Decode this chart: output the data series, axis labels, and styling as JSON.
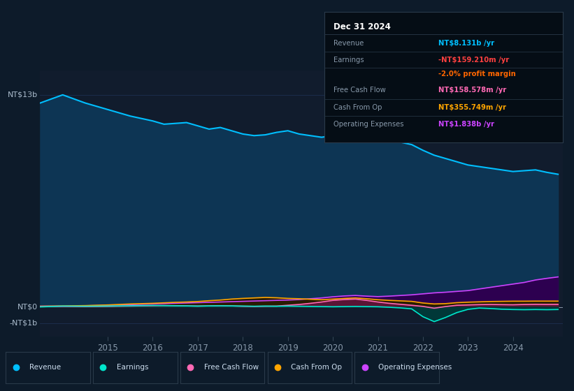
{
  "background_color": "#0d1b2a",
  "plot_bg_color": "#111c2d",
  "ylabel_top": "NT$13b",
  "ylabel_zero": "NT$0",
  "ylabel_neg": "-NT$1b",
  "ylim": [
    -1.8,
    14.5
  ],
  "xlim_start": 2013.5,
  "xlim_end": 2025.1,
  "years": [
    2013.5,
    2014.0,
    2014.5,
    2015.0,
    2015.25,
    2015.5,
    2015.75,
    2016.0,
    2016.25,
    2016.5,
    2016.75,
    2017.0,
    2017.25,
    2017.5,
    2017.75,
    2018.0,
    2018.25,
    2018.5,
    2018.75,
    2019.0,
    2019.25,
    2019.5,
    2019.75,
    2020.0,
    2020.25,
    2020.5,
    2020.75,
    2021.0,
    2021.25,
    2021.5,
    2021.75,
    2022.0,
    2022.25,
    2022.5,
    2022.75,
    2023.0,
    2023.25,
    2023.5,
    2023.75,
    2024.0,
    2024.25,
    2024.5,
    2024.75,
    2025.0
  ],
  "revenue": [
    12.5,
    13.0,
    12.5,
    12.1,
    11.9,
    11.7,
    11.55,
    11.4,
    11.2,
    11.25,
    11.3,
    11.1,
    10.9,
    11.0,
    10.8,
    10.6,
    10.5,
    10.55,
    10.7,
    10.8,
    10.6,
    10.5,
    10.4,
    10.5,
    10.65,
    10.7,
    10.55,
    10.4,
    10.25,
    10.1,
    9.95,
    9.6,
    9.3,
    9.1,
    8.9,
    8.7,
    8.6,
    8.5,
    8.4,
    8.3,
    8.35,
    8.4,
    8.25,
    8.131
  ],
  "earnings": [
    0.0,
    0.05,
    0.04,
    0.05,
    0.06,
    0.07,
    0.08,
    0.09,
    0.08,
    0.07,
    0.06,
    0.05,
    0.06,
    0.07,
    0.06,
    0.05,
    0.04,
    0.05,
    0.04,
    0.05,
    0.04,
    0.03,
    0.02,
    0.01,
    0.02,
    0.03,
    0.02,
    0.01,
    -0.02,
    -0.06,
    -0.12,
    -0.6,
    -0.9,
    -0.65,
    -0.35,
    -0.15,
    -0.07,
    -0.1,
    -0.14,
    -0.16,
    -0.17,
    -0.16,
    -0.17,
    -0.159
  ],
  "free_cash_flow": [
    0.02,
    0.03,
    0.02,
    0.03,
    0.04,
    0.05,
    0.06,
    0.07,
    0.08,
    0.07,
    0.06,
    0.05,
    0.06,
    0.07,
    0.06,
    0.04,
    0.03,
    0.04,
    0.05,
    0.1,
    0.15,
    0.22,
    0.3,
    0.4,
    0.45,
    0.48,
    0.4,
    0.3,
    0.22,
    0.16,
    0.1,
    0.03,
    -0.08,
    0.02,
    0.1,
    0.12,
    0.14,
    0.15,
    0.14,
    0.13,
    0.15,
    0.16,
    0.155,
    0.158
  ],
  "cash_from_op": [
    0.04,
    0.06,
    0.08,
    0.12,
    0.15,
    0.18,
    0.2,
    0.22,
    0.25,
    0.28,
    0.3,
    0.33,
    0.38,
    0.42,
    0.48,
    0.52,
    0.55,
    0.58,
    0.56,
    0.52,
    0.5,
    0.47,
    0.44,
    0.48,
    0.52,
    0.55,
    0.5,
    0.44,
    0.4,
    0.37,
    0.34,
    0.24,
    0.18,
    0.2,
    0.26,
    0.29,
    0.31,
    0.33,
    0.34,
    0.35,
    0.35,
    0.355,
    0.355,
    0.355
  ],
  "operating_expenses": [
    0.04,
    0.05,
    0.07,
    0.1,
    0.12,
    0.14,
    0.16,
    0.18,
    0.2,
    0.22,
    0.24,
    0.26,
    0.28,
    0.3,
    0.32,
    0.34,
    0.36,
    0.38,
    0.4,
    0.42,
    0.45,
    0.5,
    0.55,
    0.62,
    0.67,
    0.7,
    0.66,
    0.63,
    0.66,
    0.7,
    0.74,
    0.8,
    0.86,
    0.9,
    0.95,
    1.0,
    1.1,
    1.2,
    1.3,
    1.4,
    1.5,
    1.65,
    1.75,
    1.838
  ],
  "colors": {
    "revenue_line": "#00bfff",
    "revenue_fill": "#0d3554",
    "earnings_line": "#00e5cc",
    "earnings_fill": "#003838",
    "free_cash_flow_line": "#ff69b4",
    "free_cash_flow_fill": "#5a1535",
    "cash_from_op_line": "#ffa500",
    "cash_from_op_fill": "#2a1c00",
    "operating_expenses_line": "#cc44ff",
    "operating_expenses_fill": "#2d0050"
  },
  "gridline_color": "#1e3050",
  "gridline_zero_color": "#8899aa",
  "info_box": {
    "title": "Dec 31 2024",
    "title_color": "#ffffff",
    "label_color": "#8899aa",
    "divider_color": "#2a3a4a",
    "bg_color": "#050d15",
    "border_color": "#2a3a4a",
    "rows": [
      {
        "label": "Revenue",
        "value": "NT$8.131b /yr",
        "value_color": "#00bfff",
        "label_only": false
      },
      {
        "label": "Earnings",
        "value": "-NT$159.210m /yr",
        "value_color": "#ff4040",
        "label_only": false
      },
      {
        "label": "",
        "value": "-2.0% profit margin",
        "value_color": "#ff6600",
        "label_only": true
      },
      {
        "label": "Free Cash Flow",
        "value": "NT$158.578m /yr",
        "value_color": "#ff69b4",
        "label_only": false
      },
      {
        "label": "Cash From Op",
        "value": "NT$355.749m /yr",
        "value_color": "#ffa500",
        "label_only": false
      },
      {
        "label": "Operating Expenses",
        "value": "NT$1.838b /yr",
        "value_color": "#cc44ff",
        "label_only": false
      }
    ]
  },
  "legend_items": [
    {
      "label": "Revenue",
      "color": "#00bfff"
    },
    {
      "label": "Earnings",
      "color": "#00e5cc"
    },
    {
      "label": "Free Cash Flow",
      "color": "#ff69b4"
    },
    {
      "label": "Cash From Op",
      "color": "#ffa500"
    },
    {
      "label": "Operating Expenses",
      "color": "#cc44ff"
    }
  ],
  "xtick_years": [
    2015,
    2016,
    2017,
    2018,
    2019,
    2020,
    2021,
    2022,
    2023,
    2024
  ]
}
